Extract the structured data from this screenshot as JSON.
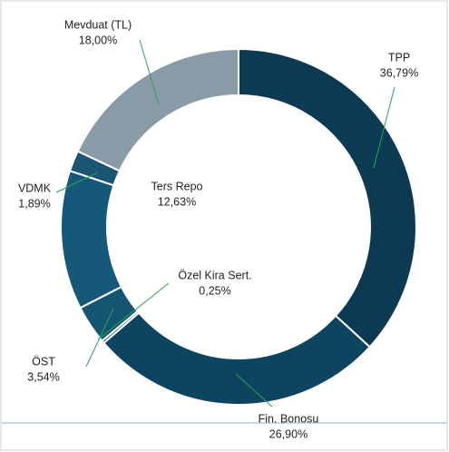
{
  "chart_data": {
    "type": "donut",
    "categories": [
      "TPP",
      "Fin. Bonosu",
      "Özel Kira Sert.",
      "ÖST",
      "Ters Repo",
      "VDMK",
      "Mevduat (TL)"
    ],
    "values": [
      36.79,
      26.9,
      0.25,
      3.54,
      12.63,
      1.89,
      18.0
    ],
    "value_labels": [
      "36,79%",
      "26,90%",
      "0,25%",
      "3,54%",
      "12,63%",
      "1,89%",
      "18,00%"
    ],
    "colors": [
      "#0b3a52",
      "#0d4561",
      "#11506b",
      "#145670",
      "#15587a",
      "#1b5574",
      "#8a9ba8"
    ],
    "leader_color": "#2e9e5a"
  }
}
